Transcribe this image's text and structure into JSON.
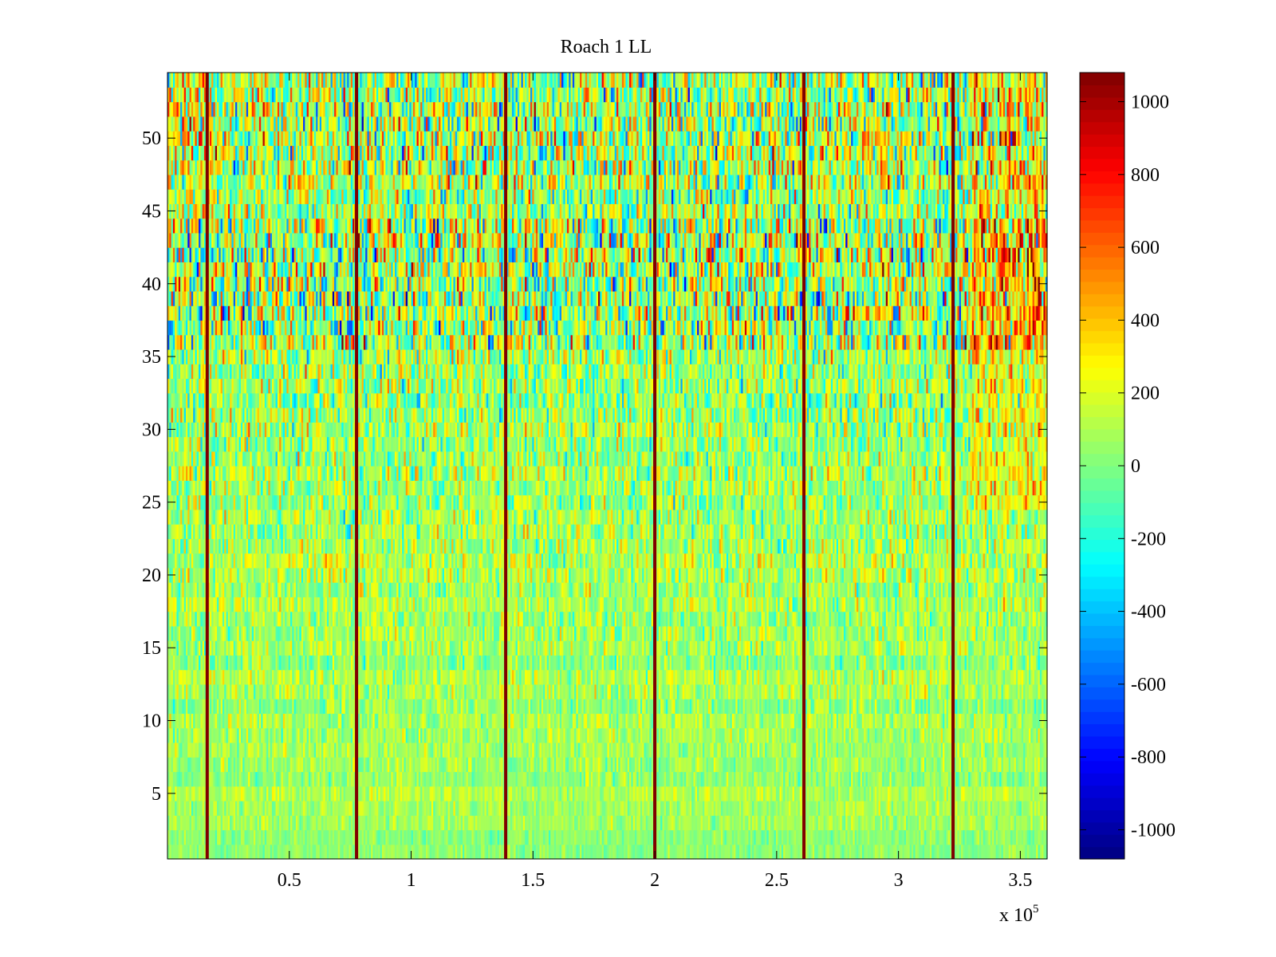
{
  "chart_data": {
    "type": "heatmap",
    "title": "Roach 1 LL",
    "xlabel": "",
    "ylabel": "",
    "x_exponent_label": "x 10",
    "x_exponent_power": "5",
    "xlim": [
      0,
      3.61
    ],
    "ylim": [
      0.5,
      54.5
    ],
    "x_tick_values": [
      0.5,
      1,
      1.5,
      2,
      2.5,
      3,
      3.5
    ],
    "x_tick_labels": [
      "0.5",
      "1",
      "1.5",
      "2",
      "2.5",
      "3",
      "3.5"
    ],
    "y_tick_values": [
      5,
      10,
      15,
      20,
      25,
      30,
      35,
      40,
      45,
      50
    ],
    "y_tick_labels": [
      "5",
      "10",
      "15",
      "20",
      "25",
      "30",
      "35",
      "40",
      "45",
      "50"
    ],
    "n_rows": 54,
    "n_time_bins": 480,
    "colormap": "jet",
    "colorbar": {
      "clim": [
        -1080,
        1080
      ],
      "tick_values": [
        -1000,
        -800,
        -600,
        -400,
        -200,
        0,
        200,
        400,
        600,
        800,
        1000
      ],
      "tick_labels": [
        "-1000",
        "-800",
        "-600",
        "-400",
        "-200",
        "0",
        "200",
        "400",
        "600",
        "800",
        "1000"
      ],
      "location": "right"
    },
    "vertical_stripes_x": [
      0.163,
      0.776,
      1.388,
      2.0,
      2.612,
      3.224
    ],
    "stripe_value": 1080,
    "grid": false,
    "legend": "none"
  }
}
